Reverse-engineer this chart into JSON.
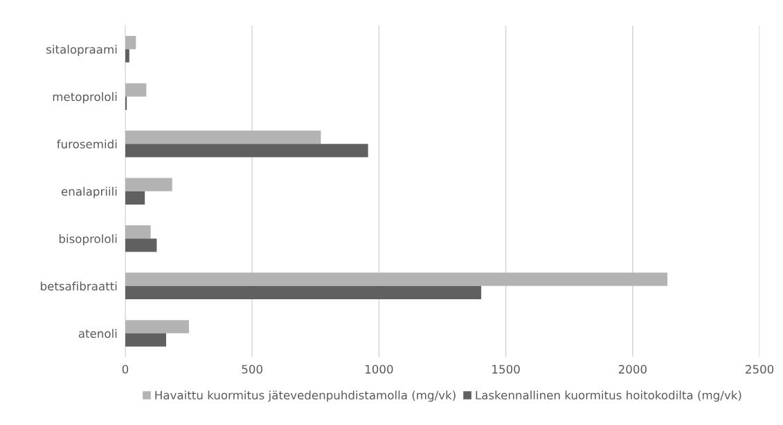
{
  "chart_data": {
    "type": "bar",
    "orientation": "horizontal",
    "categories": [
      "sitalopraami",
      "metoprololi",
      "furosemidi",
      "enalapriili",
      "bisoprololi",
      "betsafibraatti",
      "atenoli"
    ],
    "series": [
      {
        "name": "Havaittu kuormitus jätevedenpuhdistamolla (mg/vk)",
        "color": "#b3b3b3",
        "values": [
          42,
          83,
          771,
          185,
          100,
          2137,
          251
        ]
      },
      {
        "name": "Laskennallinen kuormitus hoitokodilta (mg/vk)",
        "color": "#606060",
        "values": [
          16,
          6,
          957,
          77,
          124,
          1403,
          161
        ]
      }
    ],
    "xlim": [
      0,
      2500
    ],
    "xticks": [
      0,
      500,
      1000,
      1500,
      2000,
      2500
    ],
    "grid": "x",
    "legend": "bottom"
  }
}
